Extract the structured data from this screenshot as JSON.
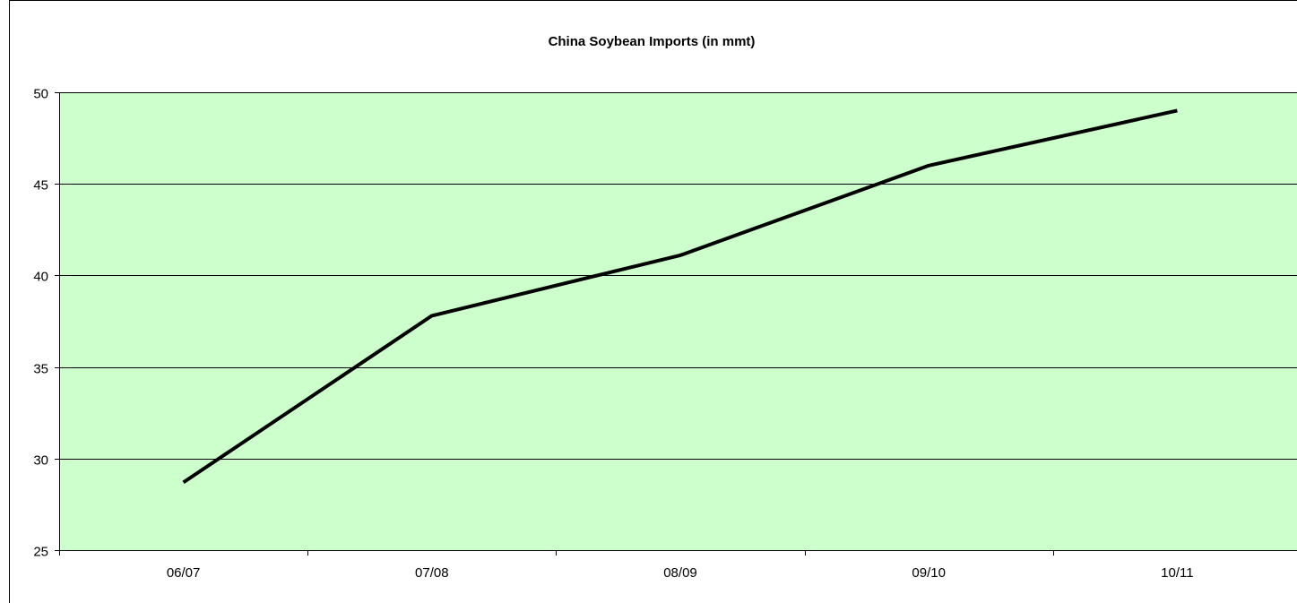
{
  "chart_data": {
    "type": "line",
    "title": "China Soybean Imports (in mmt)",
    "xlabel": "",
    "ylabel": "",
    "categories": [
      "06/07",
      "07/08",
      "08/09",
      "09/10",
      "10/11"
    ],
    "series": [
      {
        "values": [
          28.7,
          37.8,
          41.1,
          46.0,
          49.0
        ]
      }
    ],
    "ylim": [
      25,
      50
    ],
    "yticks": [
      25,
      30,
      35,
      40,
      45,
      50
    ],
    "grid": true,
    "legend": "none",
    "colors": {
      "plot_background": "#ccffcc",
      "line": "#000000",
      "gridline": "#000000",
      "border": "#000000"
    }
  }
}
